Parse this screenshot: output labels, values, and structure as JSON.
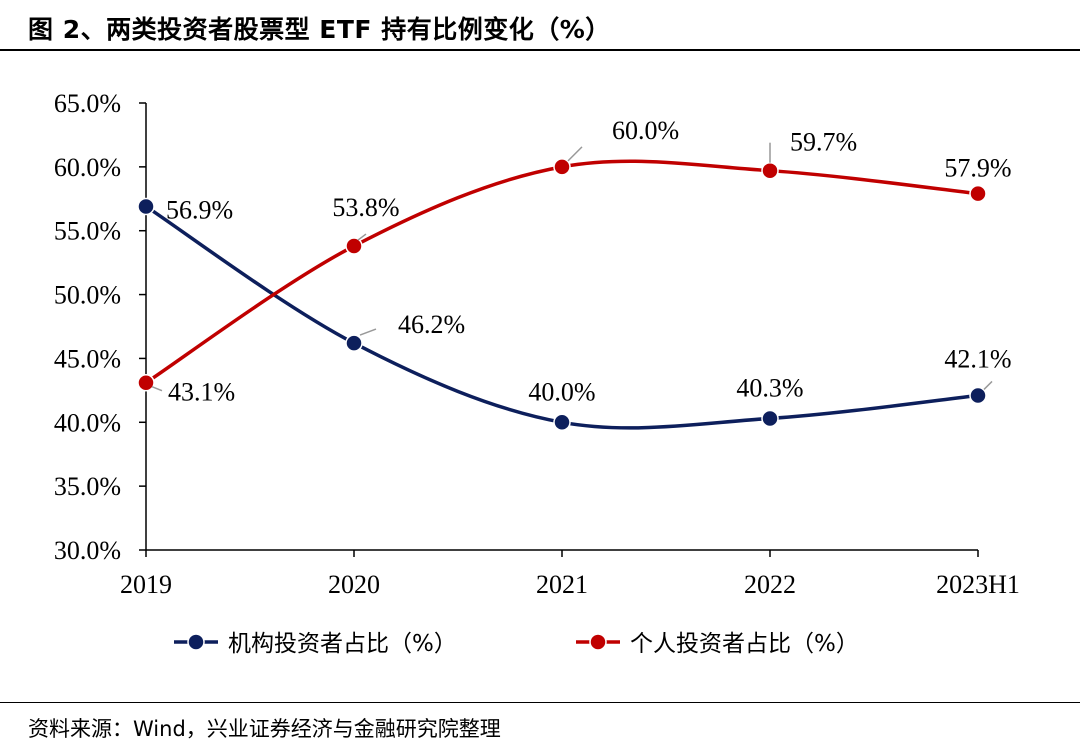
{
  "title": "图 2、两类投资者股票型 ETF 持有比例变化（%）",
  "source": "资料来源：Wind，兴业证券经济与金融研究院整理",
  "chart_data": {
    "type": "line",
    "categories": [
      "2019",
      "2020",
      "2021",
      "2022",
      "2023H1"
    ],
    "ylim": [
      30,
      65
    ],
    "yticks": [
      30,
      35,
      40,
      45,
      50,
      55,
      60,
      65
    ],
    "ytick_labels": [
      "30.0%",
      "35.0%",
      "40.0%",
      "45.0%",
      "50.0%",
      "55.0%",
      "60.0%",
      "65.0%"
    ],
    "grid": false,
    "legend_position": "bottom",
    "series": [
      {
        "name": "机构投资者占比（%）",
        "color": "#0d1f5c",
        "values": [
          56.9,
          46.2,
          40.0,
          40.3,
          42.1
        ],
        "labels": [
          "56.9%",
          "46.2%",
          "40.0%",
          "40.3%",
          "42.1%"
        ]
      },
      {
        "name": "个人投资者占比（%）",
        "color": "#c00000",
        "values": [
          43.1,
          53.8,
          60.0,
          59.7,
          57.9
        ],
        "labels": [
          "43.1%",
          "53.8%",
          "60.0%",
          "59.7%",
          "57.9%"
        ]
      }
    ]
  }
}
